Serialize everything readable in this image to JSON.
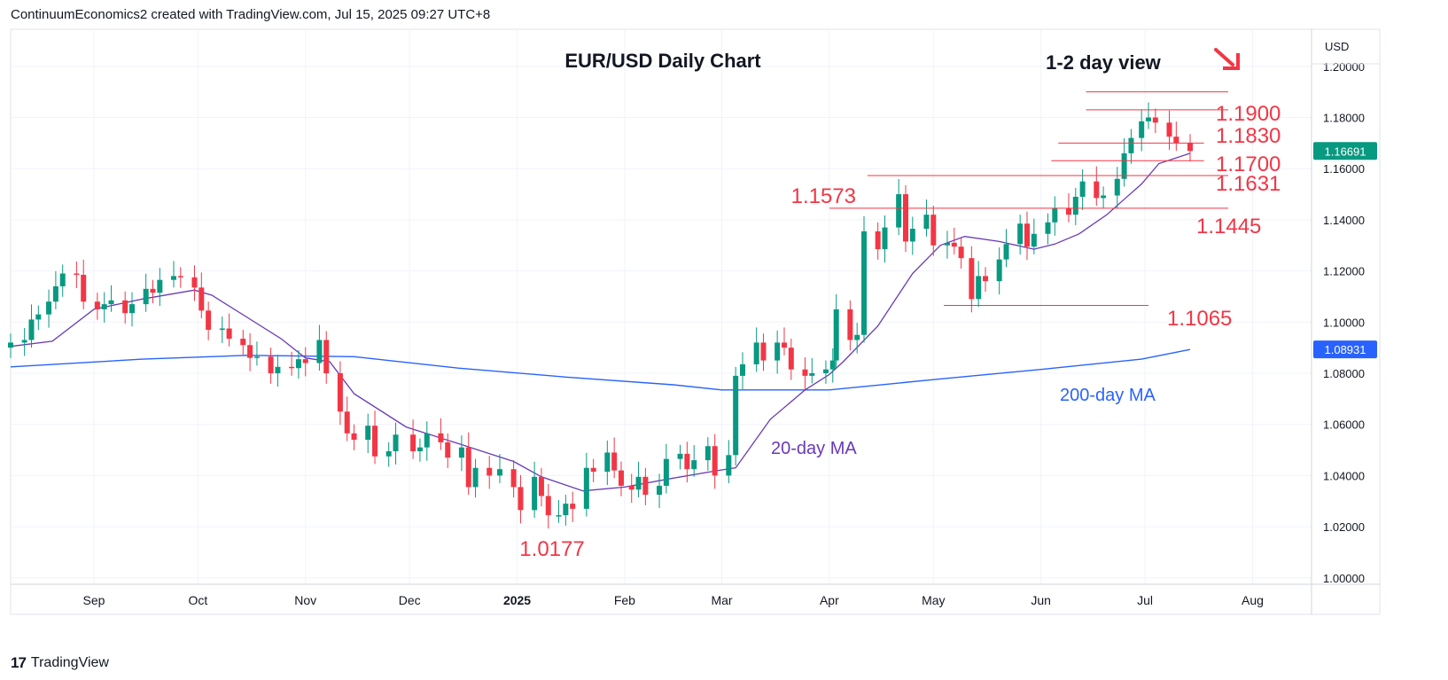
{
  "header": {
    "attribution": "ContinuumEconomics2 created with TradingView.com, Jul 15, 2025 09:27 UTC+8"
  },
  "footer": {
    "brand": "TradingView",
    "logo_text": "17"
  },
  "colors": {
    "up": "#089981",
    "down": "#f23645",
    "ma20": "#673ab7",
    "ma200": "#2962ff",
    "level": "#f23645",
    "label_text": "#f23645",
    "grid": "#f0f3fa",
    "axis_text": "#131722",
    "price_tag": "#089981",
    "ma200_tag": "#2962ff"
  },
  "chart_data": {
    "type": "candlestick",
    "title": "EUR/USD Daily Chart",
    "subtitle": "1-2 day view",
    "currency": "USD",
    "arrow_icon": "arrow-down-right-icon",
    "y_ticks": [
      1.0,
      1.02,
      1.04,
      1.06,
      1.08,
      1.1,
      1.12,
      1.14,
      1.16,
      1.18,
      1.2
    ],
    "y_tick_labels": [
      "1.00000",
      "1.02000",
      "1.04000",
      "1.06000",
      "1.08000",
      "1.10000",
      "1.12000",
      "1.14000",
      "1.16000",
      "1.18000",
      "1.20000"
    ],
    "ylim": [
      0.9975,
      1.2145
    ],
    "x_range": [
      "2024-08-08",
      "2025-08-18"
    ],
    "x_ticks": [
      {
        "date": "2024-09-01",
        "label": "Sep",
        "bold": false
      },
      {
        "date": "2024-10-01",
        "label": "Oct",
        "bold": false
      },
      {
        "date": "2024-11-01",
        "label": "Nov",
        "bold": false
      },
      {
        "date": "2024-12-01",
        "label": "Dec",
        "bold": false
      },
      {
        "date": "2025-01-01",
        "label": "2025",
        "bold": true
      },
      {
        "date": "2025-02-01",
        "label": "Feb",
        "bold": false
      },
      {
        "date": "2025-03-01",
        "label": "Mar",
        "bold": false
      },
      {
        "date": "2025-04-01",
        "label": "Apr",
        "bold": false
      },
      {
        "date": "2025-05-01",
        "label": "May",
        "bold": false
      },
      {
        "date": "2025-06-01",
        "label": "Jun",
        "bold": false
      },
      {
        "date": "2025-07-01",
        "label": "Jul",
        "bold": false
      },
      {
        "date": "2025-08-01",
        "label": "Aug",
        "bold": false
      }
    ],
    "price_tags": [
      {
        "name": "last-price",
        "value": 1.16691,
        "label": "1.16691",
        "color": "#089981"
      },
      {
        "name": "ma200-value",
        "value": 1.08931,
        "label": "1.08931",
        "color": "#2962ff"
      }
    ],
    "levels": [
      {
        "value": 1.19,
        "label": "1.1900",
        "start": "2025-06-14",
        "end": "2025-07-25"
      },
      {
        "value": 1.183,
        "label": "1.1830",
        "start": "2025-06-14",
        "end": "2025-07-25"
      },
      {
        "value": 1.17,
        "label": "1.1700",
        "start": "2025-06-06",
        "end": "2025-07-18"
      },
      {
        "value": 1.1631,
        "label": "1.1631",
        "start": "2025-06-04",
        "end": "2025-07-18"
      },
      {
        "value": 1.1573,
        "label": "1.1573",
        "start": "2025-04-12",
        "end": "2025-07-25"
      },
      {
        "value": 1.1445,
        "label": "1.1445",
        "start": "2025-04-01",
        "end": "2025-07-25"
      },
      {
        "value": 1.1065,
        "label": "1.1065",
        "start": "2025-05-04",
        "end": "2025-07-02"
      }
    ],
    "annotations": [
      {
        "text": "1.0177",
        "date": "2025-01-13",
        "value": 1.0177,
        "type": "low"
      },
      {
        "text": "20-day MA",
        "kind": "ma20",
        "date": "2025-03-22",
        "value": 1.0545
      },
      {
        "text": "200-day MA",
        "kind": "ma200",
        "date": "2025-07-02",
        "value": 1.0785
      }
    ],
    "closes": [
      [
        "2024-08-08",
        1.092
      ],
      [
        "2024-08-12",
        1.093
      ],
      [
        "2024-08-14",
        1.101
      ],
      [
        "2024-08-16",
        1.103
      ],
      [
        "2024-08-19",
        1.108
      ],
      [
        "2024-08-21",
        1.114
      ],
      [
        "2024-08-23",
        1.119
      ],
      [
        "2024-08-27",
        1.1185
      ],
      [
        "2024-08-29",
        1.108
      ],
      [
        "2024-09-02",
        1.105
      ],
      [
        "2024-09-04",
        1.107
      ],
      [
        "2024-09-06",
        1.1085
      ],
      [
        "2024-09-10",
        1.1035
      ],
      [
        "2024-09-12",
        1.107
      ],
      [
        "2024-09-16",
        1.113
      ],
      [
        "2024-09-18",
        1.1115
      ],
      [
        "2024-09-20",
        1.1165
      ],
      [
        "2024-09-24",
        1.118
      ],
      [
        "2024-09-26",
        1.1175
      ],
      [
        "2024-09-30",
        1.1135
      ],
      [
        "2024-10-02",
        1.1045
      ],
      [
        "2024-10-04",
        1.097
      ],
      [
        "2024-10-08",
        1.0975
      ],
      [
        "2024-10-10",
        1.0935
      ],
      [
        "2024-10-14",
        1.091
      ],
      [
        "2024-10-16",
        1.086
      ],
      [
        "2024-10-18",
        1.0865
      ],
      [
        "2024-10-22",
        1.08
      ],
      [
        "2024-10-24",
        1.0825
      ],
      [
        "2024-10-28",
        1.082
      ],
      [
        "2024-10-30",
        1.0855
      ],
      [
        "2024-11-01",
        1.084
      ],
      [
        "2024-11-05",
        1.093
      ],
      [
        "2024-11-07",
        1.08
      ],
      [
        "2024-11-11",
        1.065
      ],
      [
        "2024-11-13",
        1.0565
      ],
      [
        "2024-11-15",
        1.054
      ],
      [
        "2024-11-19",
        1.0595
      ],
      [
        "2024-11-21",
        1.0475
      ],
      [
        "2024-11-25",
        1.0495
      ],
      [
        "2024-11-27",
        1.056
      ],
      [
        "2024-12-02",
        1.0495
      ],
      [
        "2024-12-04",
        1.051
      ],
      [
        "2024-12-06",
        1.0565
      ],
      [
        "2024-12-10",
        1.053
      ],
      [
        "2024-12-12",
        1.047
      ],
      [
        "2024-12-16",
        1.051
      ],
      [
        "2024-12-18",
        1.0355
      ],
      [
        "2024-12-20",
        1.043
      ],
      [
        "2024-12-24",
        1.04
      ],
      [
        "2024-12-27",
        1.0425
      ],
      [
        "2024-12-31",
        1.0355
      ],
      [
        "2025-01-02",
        1.0265
      ],
      [
        "2025-01-06",
        1.0395
      ],
      [
        "2025-01-08",
        1.032
      ],
      [
        "2025-01-10",
        1.0245
      ],
      [
        "2025-01-13",
        1.0245
      ],
      [
        "2025-01-15",
        1.029
      ],
      [
        "2025-01-17",
        1.027
      ],
      [
        "2025-01-21",
        1.043
      ],
      [
        "2025-01-23",
        1.0415
      ],
      [
        "2025-01-27",
        1.049
      ],
      [
        "2025-01-29",
        1.042
      ],
      [
        "2025-01-31",
        1.036
      ],
      [
        "2025-02-03",
        1.0345
      ],
      [
        "2025-02-05",
        1.0395
      ],
      [
        "2025-02-07",
        1.0325
      ],
      [
        "2025-02-11",
        1.036
      ],
      [
        "2025-02-13",
        1.0465
      ],
      [
        "2025-02-17",
        1.0485
      ],
      [
        "2025-02-19",
        1.0425
      ],
      [
        "2025-02-21",
        1.046
      ],
      [
        "2025-02-25",
        1.0515
      ],
      [
        "2025-02-27",
        1.04
      ],
      [
        "2025-03-03",
        1.048
      ],
      [
        "2025-03-05",
        1.079
      ],
      [
        "2025-03-07",
        1.0835
      ],
      [
        "2025-03-11",
        1.092
      ],
      [
        "2025-03-13",
        1.085
      ],
      [
        "2025-03-17",
        1.092
      ],
      [
        "2025-03-19",
        1.09
      ],
      [
        "2025-03-21",
        1.0815
      ],
      [
        "2025-03-25",
        1.079
      ],
      [
        "2025-03-27",
        1.08
      ],
      [
        "2025-03-31",
        1.0815
      ],
      [
        "2025-04-02",
        1.085
      ],
      [
        "2025-04-03",
        1.105
      ],
      [
        "2025-04-07",
        1.093
      ],
      [
        "2025-04-09",
        1.095
      ],
      [
        "2025-04-11",
        1.1355
      ],
      [
        "2025-04-15",
        1.1285
      ],
      [
        "2025-04-17",
        1.137
      ],
      [
        "2025-04-21",
        1.15
      ],
      [
        "2025-04-23",
        1.1315
      ],
      [
        "2025-04-25",
        1.1365
      ],
      [
        "2025-04-29",
        1.142
      ],
      [
        "2025-05-01",
        1.13
      ],
      [
        "2025-05-05",
        1.131
      ],
      [
        "2025-05-07",
        1.1295
      ],
      [
        "2025-05-09",
        1.125
      ],
      [
        "2025-05-12",
        1.109
      ],
      [
        "2025-05-14",
        1.118
      ],
      [
        "2025-05-16",
        1.116
      ],
      [
        "2025-05-20",
        1.1245
      ],
      [
        "2025-05-22",
        1.1305
      ],
      [
        "2025-05-26",
        1.1385
      ],
      [
        "2025-05-28",
        1.1295
      ],
      [
        "2025-05-30",
        1.1345
      ],
      [
        "2025-06-03",
        1.139
      ],
      [
        "2025-06-05",
        1.1445
      ],
      [
        "2025-06-09",
        1.142
      ],
      [
        "2025-06-11",
        1.149
      ],
      [
        "2025-06-13",
        1.155
      ],
      [
        "2025-06-17",
        1.1485
      ],
      [
        "2025-06-19",
        1.1495
      ],
      [
        "2025-06-23",
        1.156
      ],
      [
        "2025-06-25",
        1.166
      ],
      [
        "2025-06-27",
        1.172
      ],
      [
        "2025-06-30",
        1.1785
      ],
      [
        "2025-07-02",
        1.18
      ],
      [
        "2025-07-04",
        1.178
      ],
      [
        "2025-07-08",
        1.1725
      ],
      [
        "2025-07-10",
        1.17
      ],
      [
        "2025-07-14",
        1.1669
      ]
    ],
    "ma20": [
      [
        "2024-08-08",
        1.0905
      ],
      [
        "2024-08-20",
        1.0925
      ],
      [
        "2024-09-01",
        1.105
      ],
      [
        "2024-09-15",
        1.109
      ],
      [
        "2024-09-30",
        1.1125
      ],
      [
        "2024-10-05",
        1.1105
      ],
      [
        "2024-10-15",
        1.102
      ],
      [
        "2024-10-25",
        1.0935
      ],
      [
        "2024-11-01",
        1.086
      ],
      [
        "2024-11-08",
        1.0845
      ],
      [
        "2024-11-15",
        1.072
      ],
      [
        "2024-11-30",
        1.059
      ],
      [
        "2024-12-15",
        1.0525
      ],
      [
        "2024-12-31",
        1.0455
      ],
      [
        "2025-01-08",
        1.0395
      ],
      [
        "2025-01-20",
        1.034
      ],
      [
        "2025-02-01",
        1.0355
      ],
      [
        "2025-02-15",
        1.039
      ],
      [
        "2025-02-28",
        1.042
      ],
      [
        "2025-03-05",
        1.043
      ],
      [
        "2025-03-15",
        1.062
      ],
      [
        "2025-03-25",
        1.0735
      ],
      [
        "2025-04-01",
        1.0795
      ],
      [
        "2025-04-05",
        1.0845
      ],
      [
        "2025-04-15",
        1.0985
      ],
      [
        "2025-04-25",
        1.119
      ],
      [
        "2025-05-03",
        1.13
      ],
      [
        "2025-05-10",
        1.1335
      ],
      [
        "2025-05-20",
        1.1315
      ],
      [
        "2025-05-30",
        1.1285
      ],
      [
        "2025-06-05",
        1.1305
      ],
      [
        "2025-06-12",
        1.1345
      ],
      [
        "2025-06-20",
        1.142
      ],
      [
        "2025-06-30",
        1.154
      ],
      [
        "2025-07-05",
        1.162
      ],
      [
        "2025-07-14",
        1.166
      ]
    ],
    "ma200": [
      [
        "2024-08-08",
        1.0825
      ],
      [
        "2024-09-15",
        1.0855
      ],
      [
        "2024-10-15",
        1.087
      ],
      [
        "2024-11-15",
        1.0865
      ],
      [
        "2024-12-15",
        1.082
      ],
      [
        "2025-01-15",
        1.0785
      ],
      [
        "2025-02-15",
        1.0755
      ],
      [
        "2025-03-01",
        1.0735
      ],
      [
        "2025-04-01",
        1.0735
      ],
      [
        "2025-05-01",
        1.0775
      ],
      [
        "2025-06-01",
        1.0815
      ],
      [
        "2025-06-30",
        1.0855
      ],
      [
        "2025-07-14",
        1.0893
      ]
    ]
  }
}
